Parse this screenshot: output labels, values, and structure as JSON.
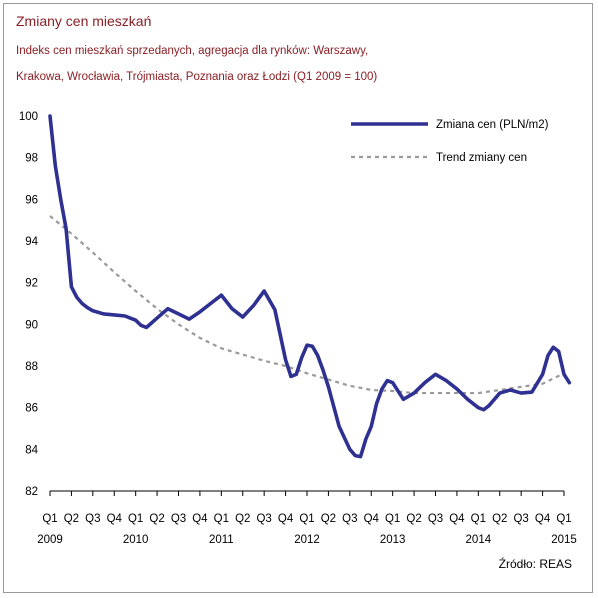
{
  "colors": {
    "title": "#8a1f24",
    "series_main": "#2e3192",
    "series_trend": "#9a9a9a",
    "axis": "#000000",
    "frame": "#9a9a9a"
  },
  "source_text": "Źródło: REAS",
  "chart_data": {
    "type": "line",
    "title": "Zmiany cen mieszkań",
    "subtitle_line1": "Indeks cen mieszkań sprzedanych, agregacja dla rynków: Warszawy,",
    "subtitle_line2": "Krakowa, Wrocławia, Trójmiasta, Poznania oraz Łodzi (Q1 2009 = 100)",
    "xlabel": "",
    "ylabel": "",
    "ylim": [
      82,
      100
    ],
    "yticks": [
      82,
      84,
      86,
      88,
      90,
      92,
      94,
      96,
      98,
      100
    ],
    "grid": false,
    "legend_position": "top-right",
    "x_quarter_labels": [
      "Q1",
      "Q2",
      "Q3",
      "Q4",
      "Q1",
      "Q2",
      "Q3",
      "Q4",
      "Q1",
      "Q2",
      "Q3",
      "Q4",
      "Q1",
      "Q2",
      "Q3",
      "Q4",
      "Q1",
      "Q2",
      "Q3",
      "Q4",
      "Q1",
      "Q2",
      "Q3",
      "Q4",
      "Q1"
    ],
    "x_year_labels": [
      {
        "index": 0,
        "label": "2009"
      },
      {
        "index": 4,
        "label": "2010"
      },
      {
        "index": 8,
        "label": "2011"
      },
      {
        "index": 12,
        "label": "2012"
      },
      {
        "index": 16,
        "label": "2013"
      },
      {
        "index": 20,
        "label": "2014"
      },
      {
        "index": 24,
        "label": "2015"
      }
    ],
    "series": [
      {
        "name": "Zmiana cen (PLN/m2)",
        "style": "solid",
        "points": [
          [
            0,
            100.0
          ],
          [
            0.25,
            97.6
          ],
          [
            0.5,
            96.0
          ],
          [
            0.75,
            94.6
          ],
          [
            1,
            91.8
          ],
          [
            1.25,
            91.3
          ],
          [
            1.5,
            91.0
          ],
          [
            1.75,
            90.8
          ],
          [
            2,
            90.65
          ],
          [
            2.5,
            90.5
          ],
          [
            3,
            90.45
          ],
          [
            3.5,
            90.4
          ],
          [
            4,
            90.2
          ],
          [
            4.25,
            89.95
          ],
          [
            4.5,
            89.85
          ],
          [
            5,
            90.3
          ],
          [
            5.5,
            90.75
          ],
          [
            6,
            90.5
          ],
          [
            6.5,
            90.25
          ],
          [
            7,
            90.6
          ],
          [
            7.5,
            91.0
          ],
          [
            8,
            91.4
          ],
          [
            8.5,
            90.75
          ],
          [
            9,
            90.35
          ],
          [
            9.5,
            90.9
          ],
          [
            10,
            91.6
          ],
          [
            10.5,
            90.7
          ],
          [
            11,
            88.3
          ],
          [
            11.25,
            87.5
          ],
          [
            11.5,
            87.6
          ],
          [
            11.75,
            88.4
          ],
          [
            12,
            89.0
          ],
          [
            12.25,
            88.95
          ],
          [
            12.5,
            88.5
          ],
          [
            12.75,
            87.8
          ],
          [
            13,
            87.0
          ],
          [
            13.5,
            85.1
          ],
          [
            14,
            84.0
          ],
          [
            14.25,
            83.7
          ],
          [
            14.5,
            83.65
          ],
          [
            14.75,
            84.5
          ],
          [
            15,
            85.1
          ],
          [
            15.25,
            86.2
          ],
          [
            15.5,
            86.9
          ],
          [
            15.75,
            87.3
          ],
          [
            16,
            87.2
          ],
          [
            16.5,
            86.4
          ],
          [
            17,
            86.7
          ],
          [
            17.5,
            87.2
          ],
          [
            18,
            87.6
          ],
          [
            18.5,
            87.3
          ],
          [
            19,
            86.9
          ],
          [
            19.5,
            86.4
          ],
          [
            20,
            86.0
          ],
          [
            20.25,
            85.9
          ],
          [
            20.5,
            86.1
          ],
          [
            21,
            86.7
          ],
          [
            21.5,
            86.85
          ],
          [
            22,
            86.7
          ],
          [
            22.5,
            86.75
          ],
          [
            23,
            87.6
          ],
          [
            23.25,
            88.5
          ],
          [
            23.5,
            88.9
          ],
          [
            23.75,
            88.7
          ],
          [
            24,
            87.6
          ],
          [
            24.25,
            87.2
          ]
        ]
      },
      {
        "name": "Trend zmiany cen",
        "style": "dashed",
        "points": [
          [
            0,
            95.2
          ],
          [
            1,
            94.35
          ],
          [
            2,
            93.45
          ],
          [
            3,
            92.5
          ],
          [
            4,
            91.6
          ],
          [
            5,
            90.75
          ],
          [
            6,
            90.0
          ],
          [
            7,
            89.35
          ],
          [
            8,
            88.85
          ],
          [
            9,
            88.55
          ],
          [
            10,
            88.25
          ],
          [
            11,
            88.0
          ],
          [
            12,
            87.65
          ],
          [
            13,
            87.35
          ],
          [
            14,
            87.05
          ],
          [
            15,
            86.85
          ],
          [
            16,
            86.8
          ],
          [
            17,
            86.7
          ],
          [
            18,
            86.7
          ],
          [
            19,
            86.7
          ],
          [
            20,
            86.7
          ],
          [
            21,
            86.85
          ],
          [
            22,
            87.0
          ],
          [
            23,
            87.15
          ],
          [
            24,
            87.65
          ]
        ]
      }
    ]
  }
}
